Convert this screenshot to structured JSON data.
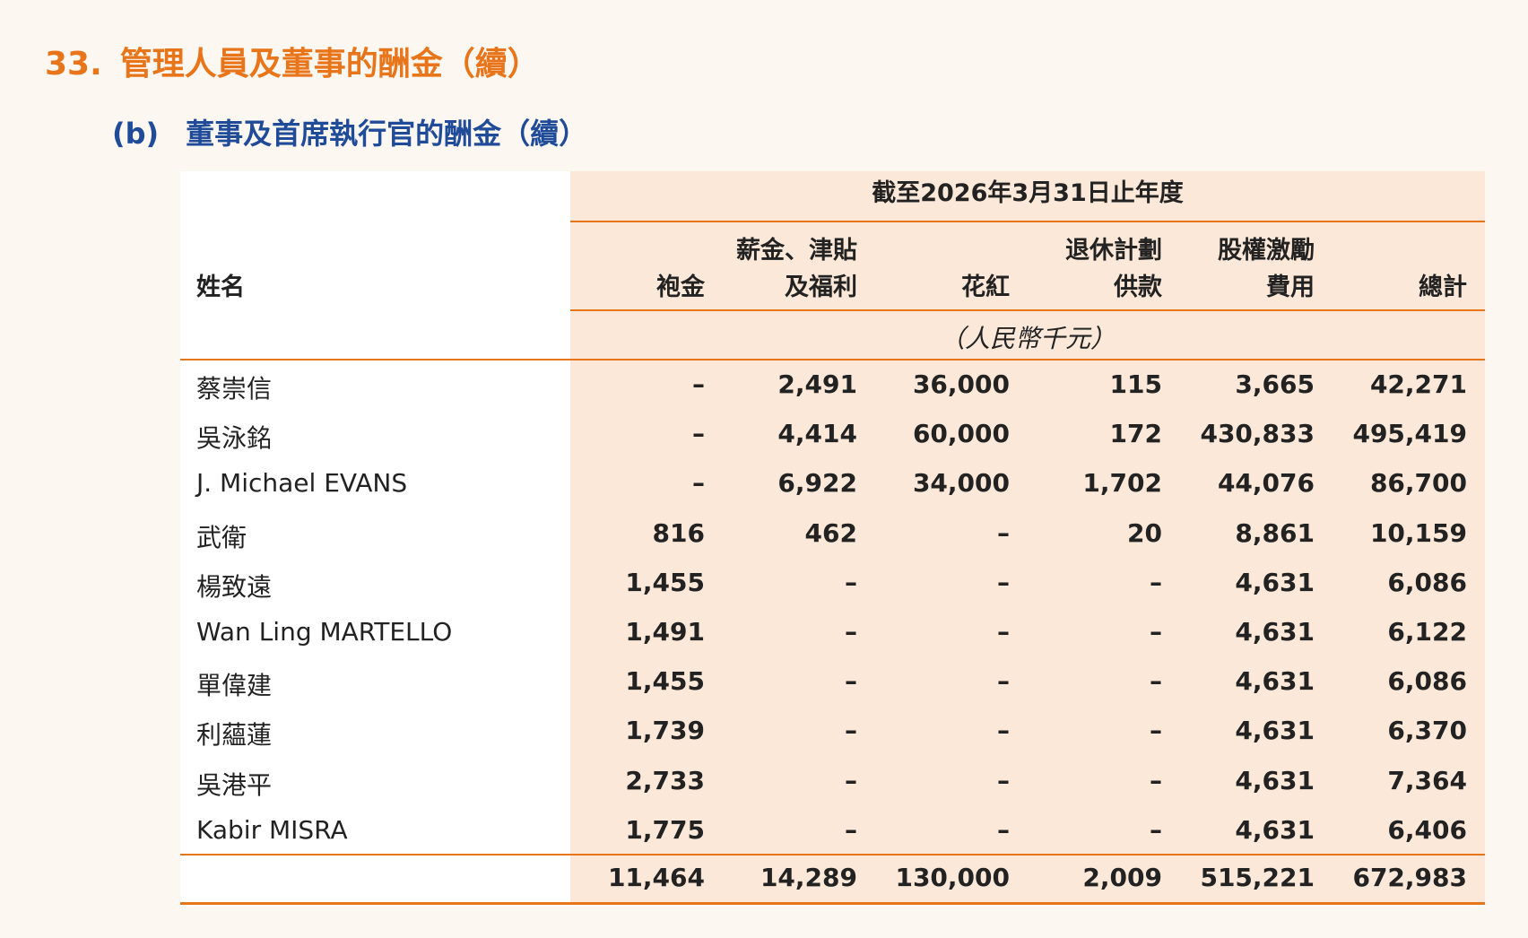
{
  "section": {
    "number": "33.",
    "title": "管理人員及董事的酬金（續）"
  },
  "subsection": {
    "letter": "(b)",
    "title": "董事及首席執行官的酬金（續）"
  },
  "table": {
    "period_header": "截至2026年3月31日止年度",
    "name_header": "姓名",
    "columns": [
      {
        "line1": "",
        "line2": "袍金"
      },
      {
        "line1": "薪金、津貼",
        "line2": "及福利"
      },
      {
        "line1": "",
        "line2": "花紅"
      },
      {
        "line1": "退休計劃",
        "line2": "供款"
      },
      {
        "line1": "股權激勵",
        "line2": "費用"
      },
      {
        "line1": "",
        "line2": "總計"
      }
    ],
    "unit": "（人民幣千元）",
    "rows": [
      {
        "name": "蔡崇信",
        "values": [
          "–",
          "2,491",
          "36,000",
          "115",
          "3,665",
          "42,271"
        ]
      },
      {
        "name": "吳泳銘",
        "values": [
          "–",
          "4,414",
          "60,000",
          "172",
          "430,833",
          "495,419"
        ]
      },
      {
        "name": "J. Michael EVANS",
        "values": [
          "–",
          "6,922",
          "34,000",
          "1,702",
          "44,076",
          "86,700"
        ]
      },
      {
        "name": "武衛",
        "values": [
          "816",
          "462",
          "–",
          "20",
          "8,861",
          "10,159"
        ]
      },
      {
        "name": "楊致遠",
        "values": [
          "1,455",
          "–",
          "–",
          "–",
          "4,631",
          "6,086"
        ]
      },
      {
        "name": "Wan Ling MARTELLO",
        "values": [
          "1,491",
          "–",
          "–",
          "–",
          "4,631",
          "6,122"
        ]
      },
      {
        "name": "單偉建",
        "values": [
          "1,455",
          "–",
          "–",
          "–",
          "4,631",
          "6,086"
        ]
      },
      {
        "name": "利蘊蓮",
        "values": [
          "1,739",
          "–",
          "–",
          "–",
          "4,631",
          "6,370"
        ]
      },
      {
        "name": "吳港平",
        "values": [
          "2,733",
          "–",
          "–",
          "–",
          "4,631",
          "7,364"
        ]
      },
      {
        "name": "Kabir MISRA",
        "values": [
          "1,775",
          "–",
          "–",
          "–",
          "4,631",
          "6,406"
        ]
      }
    ],
    "totals": [
      "11,464",
      "14,289",
      "130,000",
      "2,009",
      "515,221",
      "672,983"
    ]
  },
  "colors": {
    "accent": "#e8751a",
    "heading_blue": "#1f4b99",
    "shade": "#fbe8d8",
    "page_bg": "#fdf7f1"
  }
}
